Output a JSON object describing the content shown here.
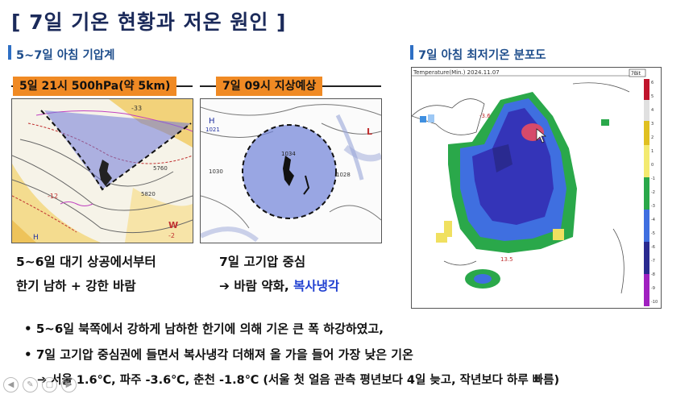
{
  "slide": {
    "title": "[ 7일 기온 현황과 저온 원인 ]",
    "left_section": "5~7일 아침 기압계",
    "right_section": "7일 아침 최저기온 분포도",
    "banner1": "5일 21시 500hPa(약 5km)",
    "banner2": "7일 09시 지상예상",
    "caption1_line1": "5~6일 대기 상공에서부터",
    "caption1_line2": "한기 남하 + 강한 바람",
    "caption2_line1": "7일 고기압 중심",
    "caption2_arrow": "➔",
    "caption2_part1": " 바람 약화, ",
    "caption2_part2": "복사냉각",
    "bullet1": "5~6일 북쪽에서 강하게 남하한 한기에 의해 기온 큰 폭 하강하였고,",
    "bullet2": "7일 고기압 중심권에 들면서 복사냉각 더해져 올 가을 들어 가장 낮은 기온",
    "detail_arrow": "➔",
    "detail": " 서울 1.6℃, 파주 -3.6℃, 춘천 -1.8℃ (서울 첫 얼음 관측 평년보다 4일 늦고, 작년보다 하루 빠름)",
    "bullet_glyph": "•"
  },
  "map1_labels": [
    "-33",
    "-12",
    "5760",
    "5820",
    "-2",
    "W",
    "H"
  ],
  "map2_labels": [
    "H",
    "1021",
    "1034",
    "1030",
    "1028",
    "L"
  ],
  "temp_map": {
    "header": "Temperature(Min.)  2024.11.07",
    "badge": "7Bit",
    "city_label": "-3.6",
    "south_label": "13.5",
    "scale_labels": [
      "6",
      "5",
      "4",
      "3",
      "2",
      "1",
      "0",
      "-1",
      "-2",
      "-3",
      "-4",
      "-5",
      "-6",
      "-7",
      "-8",
      "-9",
      "-10"
    ]
  },
  "player_controls": [
    "◀",
    "✎",
    "▢",
    "▶"
  ],
  "colors": {
    "title": "#1b2a5a",
    "section": "#1f4e8c",
    "banner": "#f08a24",
    "highlight": "#1f3fd1"
  }
}
